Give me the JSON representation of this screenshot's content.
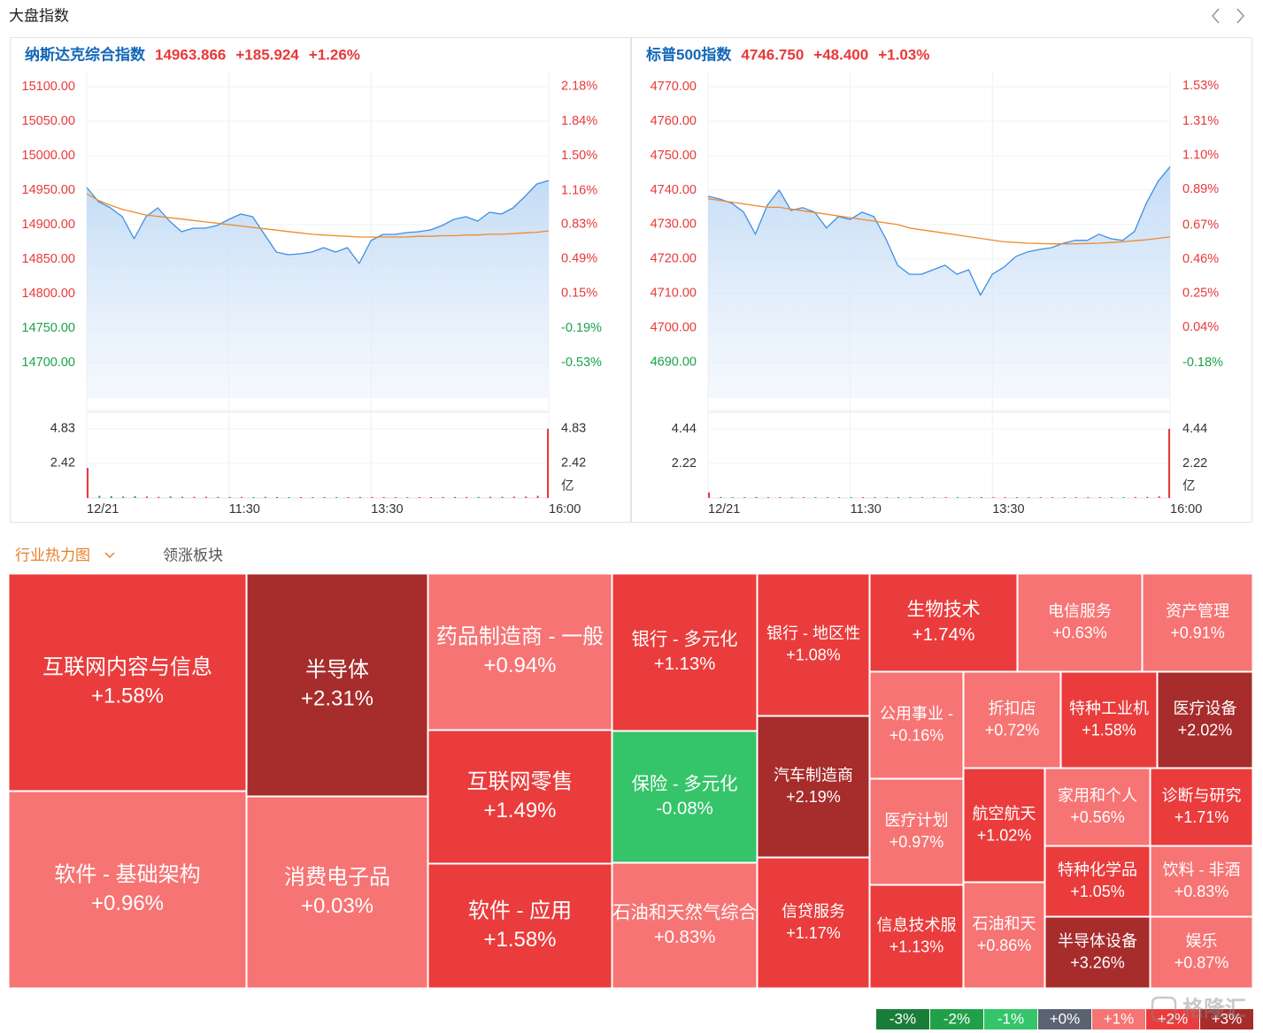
{
  "header": {
    "title": "大盘指数"
  },
  "chart_data": [
    {
      "type": "line",
      "title": "纳斯达克综合指数",
      "price": {
        "value": 14963.866,
        "label": "14963.866"
      },
      "change": {
        "value": 185.924,
        "label": "+185.924"
      },
      "change_pct": {
        "value": 1.26,
        "label": "+1.26%"
      },
      "up_color": "#e8393a",
      "down_color": "#1aa34a",
      "x": [
        0,
        10,
        20,
        30,
        40,
        50,
        60,
        70,
        80,
        90,
        100,
        110,
        120,
        130,
        140,
        150,
        160,
        170,
        180,
        190,
        200,
        210,
        220,
        230,
        240,
        250,
        260,
        270,
        280,
        290,
        300,
        310,
        320,
        330,
        340,
        350,
        360,
        370,
        380,
        390
      ],
      "xlim": [
        0,
        390
      ],
      "xticks": [
        {
          "value": 0,
          "label": "12/21"
        },
        {
          "value": 120,
          "label": "11:30"
        },
        {
          "value": 240,
          "label": "13:30"
        },
        {
          "value": 390,
          "label": "16:00"
        }
      ],
      "ylim": [
        14648.7,
        15120.5
      ],
      "yticks": [
        {
          "value": 15100,
          "label": "15100.00"
        },
        {
          "value": 15050,
          "label": "15050.00"
        },
        {
          "value": 15000,
          "label": "15000.00"
        },
        {
          "value": 14950,
          "label": "14950.00"
        },
        {
          "value": 14900,
          "label": "14900.00"
        },
        {
          "value": 14850,
          "label": "14850.00"
        },
        {
          "value": 14800,
          "label": "14800.00"
        },
        {
          "value": 14750,
          "label": "14750.00"
        },
        {
          "value": 14700,
          "label": "14700.00"
        }
      ],
      "y2lim": [
        -0.8746,
        2.318
      ],
      "y2ticks": [
        {
          "value": 2.18,
          "label": "2.18%"
        },
        {
          "value": 1.84,
          "label": "1.84%"
        },
        {
          "value": 1.5,
          "label": "1.50%"
        },
        {
          "value": 1.16,
          "label": "1.16%"
        },
        {
          "value": 0.83,
          "label": "0.83%"
        },
        {
          "value": 0.49,
          "label": "0.49%"
        },
        {
          "value": 0.15,
          "label": "0.15%"
        },
        {
          "value": -0.19,
          "label": "-0.19%"
        },
        {
          "value": -0.53,
          "label": "-0.53%"
        }
      ],
      "grid": true,
      "series": [
        {
          "color": "#3f8fe0",
          "values": [
            14953.8,
            14933.3,
            14924.4,
            14911.5,
            14879.5,
            14911.5,
            14924.4,
            14905.1,
            14889.7,
            14894.9,
            14894.9,
            14898.7,
            14907.7,
            14915.4,
            14911.5,
            14885.9,
            14860.3,
            14856.4,
            14857.7,
            14860.3,
            14866.7,
            14860.3,
            14866.7,
            14843.6,
            14876.9,
            14885.9,
            14885.9,
            14888.5,
            14889.7,
            14892.3,
            14898.7,
            14907.7,
            14911.5,
            14905.1,
            14917.9,
            14915.4,
            14924.4,
            14941.0,
            14959.0,
            14963.9
          ]
        },
        {
          "color": "#ee8a2c",
          "values": [
            14945,
            14935,
            14928,
            14922,
            14918,
            14914,
            14912,
            14910,
            14908,
            14906,
            14904,
            14902,
            14900,
            14898,
            14896,
            14894,
            14892,
            14890,
            14888,
            14886,
            14885,
            14884,
            14883,
            14882,
            14882,
            14882,
            14882,
            14882,
            14883,
            14883,
            14884,
            14884,
            14885,
            14885,
            14886,
            14886,
            14887,
            14888,
            14889,
            14891
          ]
        }
      ],
      "volume": {
        "unit": "亿",
        "ylim": [
          0,
          5.99
        ],
        "yticks": [
          4.83,
          2.42
        ],
        "values": [
          2.1,
          0.15,
          0.12,
          0.1,
          0.12,
          0.1,
          0.08,
          0.1,
          0.08,
          0.08,
          0.08,
          0.07,
          0.07,
          0.07,
          0.06,
          0.08,
          0.07,
          0.06,
          0.06,
          0.06,
          0.06,
          0.06,
          0.06,
          0.07,
          0.07,
          0.06,
          0.06,
          0.06,
          0.06,
          0.06,
          0.07,
          0.07,
          0.07,
          0.07,
          0.08,
          0.08,
          0.09,
          0.1,
          0.15,
          4.83
        ]
      }
    },
    {
      "type": "line",
      "title": "标普500指数",
      "price": {
        "value": 4746.75,
        "label": "4746.750"
      },
      "change": {
        "value": 48.4,
        "label": "+48.400"
      },
      "change_pct": {
        "value": 1.03,
        "label": "+1.03%"
      },
      "up_color": "#e8393a",
      "down_color": "#1aa34a",
      "x": [
        0,
        10,
        20,
        30,
        40,
        50,
        60,
        70,
        80,
        90,
        100,
        110,
        120,
        130,
        140,
        150,
        160,
        170,
        180,
        190,
        200,
        210,
        220,
        230,
        240,
        250,
        260,
        270,
        280,
        290,
        300,
        310,
        320,
        330,
        340,
        350,
        360,
        370,
        380,
        390
      ],
      "xlim": [
        0,
        390
      ],
      "xticks": [
        {
          "value": 0,
          "label": "12/21"
        },
        {
          "value": 120,
          "label": "11:30"
        },
        {
          "value": 240,
          "label": "13:30"
        },
        {
          "value": 390,
          "label": "16:00"
        }
      ],
      "ylim": [
        4679.7,
        4774.1
      ],
      "yticks": [
        {
          "value": 4770,
          "label": "4770.00"
        },
        {
          "value": 4760,
          "label": "4760.00"
        },
        {
          "value": 4750,
          "label": "4750.00"
        },
        {
          "value": 4740,
          "label": "4740.00"
        },
        {
          "value": 4730,
          "label": "4730.00"
        },
        {
          "value": 4720,
          "label": "4720.00"
        },
        {
          "value": 4710,
          "label": "4710.00"
        },
        {
          "value": 4700,
          "label": "4700.00"
        },
        {
          "value": 4690,
          "label": "4690.00"
        }
      ],
      "y2lim": [
        -0.397,
        1.612
      ],
      "y2ticks": [
        {
          "value": 1.53,
          "label": "1.53%"
        },
        {
          "value": 1.31,
          "label": "1.31%"
        },
        {
          "value": 1.1,
          "label": "1.10%"
        },
        {
          "value": 0.89,
          "label": "0.89%"
        },
        {
          "value": 0.67,
          "label": "0.67%"
        },
        {
          "value": 0.46,
          "label": "0.46%"
        },
        {
          "value": 0.25,
          "label": "0.25%"
        },
        {
          "value": 0.04,
          "label": "0.04%"
        },
        {
          "value": -0.18,
          "label": "-0.18%"
        }
      ],
      "grid": true,
      "series": [
        {
          "color": "#3f8fe0",
          "values": [
            4738.2,
            4737.4,
            4736.2,
            4733.6,
            4727.2,
            4735.6,
            4740.0,
            4734.1,
            4734.9,
            4733.6,
            4729.0,
            4732.3,
            4731.5,
            4733.6,
            4732.3,
            4725.9,
            4718.2,
            4715.6,
            4715.6,
            4716.9,
            4718.2,
            4715.6,
            4716.9,
            4709.5,
            4715.6,
            4717.7,
            4720.8,
            4722.1,
            4722.8,
            4723.3,
            4724.6,
            4725.4,
            4725.4,
            4727.2,
            4725.9,
            4725.4,
            4728.0,
            4736.2,
            4742.6,
            4746.75
          ]
        },
        {
          "color": "#ee8a2c",
          "values": [
            4737.5,
            4737,
            4736.5,
            4736,
            4735.5,
            4735,
            4735,
            4734.5,
            4734,
            4733.5,
            4733,
            4732.5,
            4732,
            4731.5,
            4731,
            4730.5,
            4730,
            4729,
            4728.5,
            4728,
            4727.5,
            4727,
            4726.5,
            4726,
            4725.5,
            4725,
            4724.8,
            4724.6,
            4724.5,
            4724.4,
            4724.4,
            4724.4,
            4724.5,
            4724.6,
            4724.8,
            4725,
            4725.3,
            4725.6,
            4726,
            4726.4
          ]
        }
      ],
      "volume": {
        "unit": "亿",
        "ylim": [
          0,
          5.52
        ],
        "yticks": [
          4.44,
          2.22
        ],
        "values": [
          0.35,
          0.06,
          0.05,
          0.05,
          0.06,
          0.05,
          0.05,
          0.05,
          0.05,
          0.05,
          0.05,
          0.05,
          0.05,
          0.05,
          0.05,
          0.05,
          0.05,
          0.05,
          0.05,
          0.05,
          0.05,
          0.05,
          0.05,
          0.06,
          0.05,
          0.05,
          0.05,
          0.05,
          0.05,
          0.05,
          0.05,
          0.05,
          0.05,
          0.05,
          0.05,
          0.05,
          0.06,
          0.07,
          0.1,
          4.44
        ]
      }
    }
  ],
  "heatmap": {
    "tabs": [
      "行业热力图",
      "领涨板块"
    ],
    "tiles": [
      {
        "name": "互联网内容与信息",
        "value": 1.58,
        "label": "+1.58%"
      },
      {
        "name": "软件 - 基础架构",
        "value": 0.96,
        "label": "+0.96%"
      },
      {
        "name": "半导体",
        "value": 2.31,
        "label": "+2.31%"
      },
      {
        "name": "消费电子品",
        "value": 0.03,
        "label": "+0.03%"
      },
      {
        "name": "药品制造商 - 一般",
        "value": 0.94,
        "label": "+0.94%"
      },
      {
        "name": "互联网零售",
        "value": 1.49,
        "label": "+1.49%"
      },
      {
        "name": "软件 - 应用",
        "value": 1.58,
        "label": "+1.58%"
      },
      {
        "name": "银行 - 多元化",
        "value": 1.13,
        "label": "+1.13%"
      },
      {
        "name": "保险 - 多元化",
        "value": -0.08,
        "label": "-0.08%"
      },
      {
        "name": "石油和天然气综合",
        "value": 0.83,
        "label": "+0.83%"
      },
      {
        "name": "银行 - 地区性",
        "value": 1.08,
        "label": "+1.08%"
      },
      {
        "name": "汽车制造商",
        "value": 2.19,
        "label": "+2.19%"
      },
      {
        "name": "信贷服务",
        "value": 1.17,
        "label": "+1.17%"
      },
      {
        "name": "生物技术",
        "value": 1.74,
        "label": "+1.74%"
      },
      {
        "name": "电信服务",
        "value": 0.63,
        "label": "+0.63%"
      },
      {
        "name": "资产管理",
        "value": 0.91,
        "label": "+0.91%"
      },
      {
        "name": "公用事业 -",
        "value": 0.16,
        "label": "+0.16%"
      },
      {
        "name": "折扣店",
        "value": 0.72,
        "label": "+0.72%"
      },
      {
        "name": "特种工业机",
        "value": 1.58,
        "label": "+1.58%"
      },
      {
        "name": "医疗设备",
        "value": 2.02,
        "label": "+2.02%"
      },
      {
        "name": "医疗计划",
        "value": 0.97,
        "label": "+0.97%"
      },
      {
        "name": "航空航天",
        "value": 1.02,
        "label": "+1.02%"
      },
      {
        "name": "家用和个人",
        "value": 0.56,
        "label": "+0.56%"
      },
      {
        "name": "诊断与研究",
        "value": 1.71,
        "label": "+1.71%"
      },
      {
        "name": "特种化学品",
        "value": 1.05,
        "label": "+1.05%"
      },
      {
        "name": "饮料 - 非酒",
        "value": 0.83,
        "label": "+0.83%"
      },
      {
        "name": "信息技术服",
        "value": 1.13,
        "label": "+1.13%"
      },
      {
        "name": "石油和天",
        "value": 0.86,
        "label": "+0.86%"
      },
      {
        "name": "半导体设备",
        "value": 3.26,
        "label": "+3.26%"
      },
      {
        "name": "娱乐",
        "value": 0.87,
        "label": "+0.87%"
      }
    ],
    "legend": [
      {
        "value": -3,
        "label": "-3%",
        "color": "#1b7d3a"
      },
      {
        "value": -2,
        "label": "-2%",
        "color": "#21a04a"
      },
      {
        "value": -1,
        "label": "-1%",
        "color": "#35c46a"
      },
      {
        "value": 0,
        "label": "+0%",
        "color": "#5a6372"
      },
      {
        "value": 1,
        "label": "+1%",
        "color": "#f77474"
      },
      {
        "value": 2,
        "label": "+2%",
        "color": "#ea3c3c"
      },
      {
        "value": 3,
        "label": "+3%",
        "color": "#a72c2c"
      }
    ],
    "watermark": "格隆汇"
  }
}
